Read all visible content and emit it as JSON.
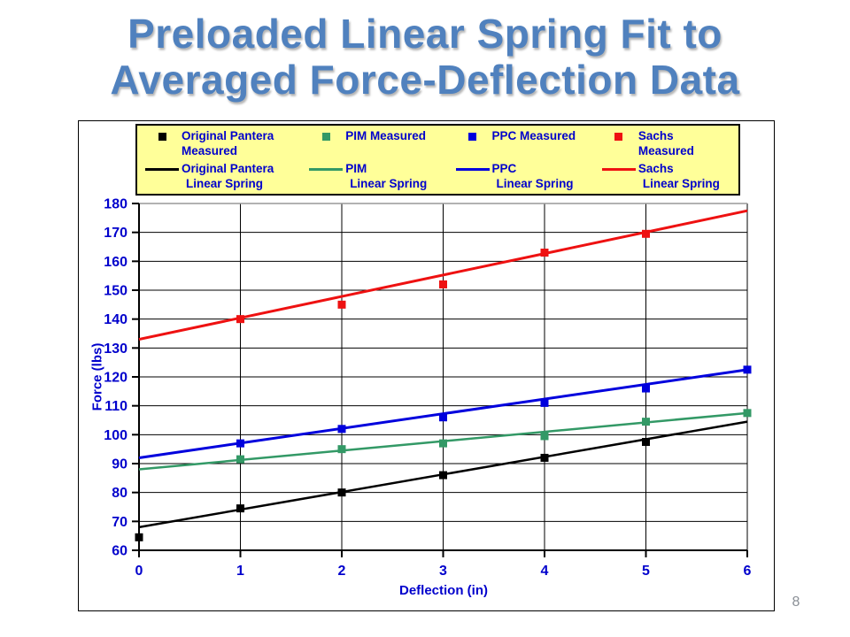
{
  "slide": {
    "title_line1": "Preloaded Linear Spring Fit to",
    "title_line2": "Averaged Force-Deflection Data",
    "page_number": "8"
  },
  "colors": {
    "title_text": "#5081BE",
    "axis_text": "#0000CC",
    "legend_bg": "#FFFF99",
    "grid": "#000000",
    "grid_top": "#999999",
    "axis_line": "#000000",
    "page_number": "#8a8f96"
  },
  "chart_data": {
    "type": "scatter",
    "title": "",
    "xlabel": "Deflection (in)",
    "ylabel": "Force (lbs)",
    "xlim": [
      0,
      6
    ],
    "ylim": [
      60,
      180
    ],
    "x_ticks": [
      0,
      1,
      2,
      3,
      4,
      5,
      6
    ],
    "y_ticks": [
      60,
      70,
      80,
      90,
      100,
      110,
      120,
      130,
      140,
      150,
      160,
      170,
      180
    ],
    "grid": true,
    "legend_position": "top",
    "series": [
      {
        "name": "Original Pantera Measured",
        "type": "scatter",
        "color": "#000000",
        "marker": "square",
        "points": [
          [
            0,
            64.5
          ],
          [
            1,
            74.5
          ],
          [
            2,
            80
          ],
          [
            3,
            86
          ],
          [
            4,
            92
          ],
          [
            5,
            97.5
          ]
        ]
      },
      {
        "name": "PIM Measured",
        "type": "scatter",
        "color": "#339966",
        "marker": "square",
        "points": [
          [
            1,
            91.5
          ],
          [
            2,
            95
          ],
          [
            3,
            97
          ],
          [
            4,
            99.5
          ],
          [
            5,
            104.5
          ],
          [
            6,
            107.5
          ]
        ]
      },
      {
        "name": "PPC Measured",
        "type": "scatter",
        "color": "#0000DD",
        "marker": "square",
        "points": [
          [
            1,
            97
          ],
          [
            2,
            102
          ],
          [
            3,
            106
          ],
          [
            4,
            111
          ],
          [
            5,
            116
          ],
          [
            6,
            122.5
          ]
        ]
      },
      {
        "name": "Sachs Measured",
        "type": "scatter",
        "color": "#EE1111",
        "marker": "square",
        "points": [
          [
            1,
            140
          ],
          [
            2,
            145
          ],
          [
            3,
            152
          ],
          [
            4,
            163
          ],
          [
            5,
            169.5
          ]
        ]
      },
      {
        "name": "Original Pantera Linear Spring",
        "type": "line",
        "color": "#000000",
        "line_width": 2.5,
        "points": [
          [
            0,
            68
          ],
          [
            6,
            104.5
          ]
        ]
      },
      {
        "name": "PIM Linear Spring",
        "type": "line",
        "color": "#339966",
        "line_width": 2.5,
        "points": [
          [
            0,
            88
          ],
          [
            6,
            107.5
          ]
        ]
      },
      {
        "name": "PPC Linear Spring",
        "type": "line",
        "color": "#0000DD",
        "line_width": 3,
        "points": [
          [
            0,
            92
          ],
          [
            6,
            122.5
          ]
        ]
      },
      {
        "name": "Sachs Linear Spring",
        "type": "line",
        "color": "#EE1111",
        "line_width": 3,
        "points": [
          [
            0,
            133
          ],
          [
            6,
            177.5
          ]
        ]
      }
    ],
    "legend": {
      "entries": [
        {
          "label_line1": "Original Pantera",
          "label_line2": "Measured",
          "marker": "square",
          "color": "#000000"
        },
        {
          "label_line1": "PIM Measured",
          "label_line2": "",
          "marker": "square",
          "color": "#339966"
        },
        {
          "label_line1": "PPC Measured",
          "label_line2": "",
          "marker": "square",
          "color": "#0000DD"
        },
        {
          "label_line1": "Sachs",
          "label_line2": "Measured",
          "marker": "square",
          "color": "#EE1111"
        },
        {
          "label_line1": "Original Pantera",
          "label_line2": "Linear Spring",
          "marker": "line",
          "color": "#000000"
        },
        {
          "label_line1": "PIM",
          "label_line2": "Linear Spring",
          "marker": "line",
          "color": "#339966"
        },
        {
          "label_line1": "PPC",
          "label_line2": "Linear Spring",
          "marker": "line",
          "color": "#0000DD"
        },
        {
          "label_line1": "Sachs",
          "label_line2": "Linear Spring",
          "marker": "line",
          "color": "#EE1111"
        }
      ]
    }
  }
}
